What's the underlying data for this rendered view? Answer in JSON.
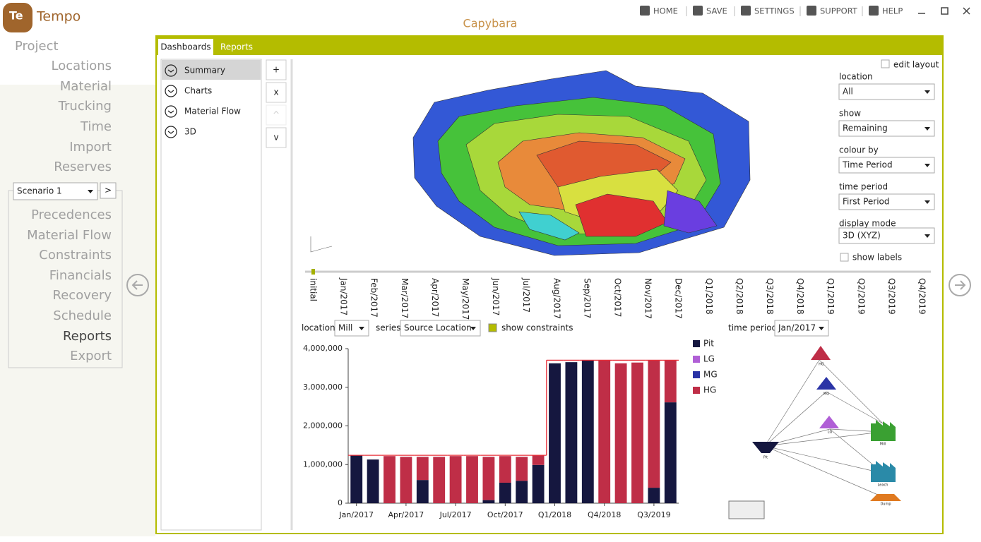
{
  "app": {
    "logo": "Te",
    "name": "Tempo",
    "project_title": "Capybara"
  },
  "toolbar": [
    "HOME",
    "SAVE",
    "SETTINGS",
    "SUPPORT",
    "HELP"
  ],
  "nav": {
    "top": [
      "Project",
      "Locations",
      "Material",
      "Trucking",
      "Time",
      "Import",
      "Reserves"
    ],
    "scenario": "Scenario 1",
    "scenario_button": ">",
    "bottom": [
      "Precedences",
      "Material Flow",
      "Constraints",
      "Financials",
      "Recovery",
      "Schedule",
      "Reports",
      "Export"
    ]
  },
  "tabs": [
    "Dashboards",
    "Reports"
  ],
  "dashboards": [
    "Summary",
    "Charts",
    "Material Flow",
    "3D"
  ],
  "dashboard_buttons": [
    "+",
    "x",
    "^",
    "v"
  ],
  "view_controls": {
    "edit_layout": "edit layout",
    "fields": [
      {
        "label": "location",
        "value": "All"
      },
      {
        "label": "show",
        "value": "Remaining"
      },
      {
        "label": "colour by",
        "value": "Time Period"
      },
      {
        "label": "time period",
        "value": "First Period"
      },
      {
        "label": "display mode",
        "value": "3D (XYZ)"
      }
    ],
    "show_labels": "show labels"
  },
  "timeline": [
    "initial",
    "Jan/2017",
    "Feb/2017",
    "Mar/2017",
    "Apr/2017",
    "May/2017",
    "Jun/2017",
    "Jul/2017",
    "Aug/2017",
    "Sep/2017",
    "Oct/2017",
    "Nov/2017",
    "Dec/2017",
    "Q1/2018",
    "Q2/2018",
    "Q3/2018",
    "Q4/2018",
    "Q1/2019",
    "Q2/2019",
    "Q3/2019",
    "Q4/2019"
  ],
  "chart_controls": {
    "location_label": "location",
    "location": "Mill",
    "series_label": "series",
    "series": "Source Location",
    "show_constraints": "show constraints",
    "time_period_label": "time period",
    "time_period": "Jan/2017"
  },
  "chart_data": {
    "type": "stacked_bar",
    "categories": [
      "Jan/2017",
      null,
      null,
      "Apr/2017",
      null,
      null,
      "Jul/2017",
      null,
      null,
      "Oct/2017",
      null,
      null,
      "Q1/2018",
      null,
      null,
      "Q4/2018",
      null,
      null,
      "Q3/2019",
      null
    ],
    "series": [
      {
        "name": "Pit",
        "color": "#15173f",
        "values": [
          1240000,
          1130000,
          0,
          0,
          600000,
          0,
          0,
          0,
          80000,
          530000,
          580000,
          990000,
          3620000,
          3650000,
          3700000,
          0,
          0,
          0,
          400000,
          2610000
        ]
      },
      {
        "name": "LG",
        "color": "#b05fd6",
        "values": [
          0,
          0,
          0,
          0,
          0,
          0,
          0,
          0,
          0,
          0,
          0,
          0,
          0,
          0,
          0,
          0,
          0,
          0,
          0,
          0
        ]
      },
      {
        "name": "MG",
        "color": "#2a33a6",
        "values": [
          0,
          0,
          0,
          0,
          0,
          0,
          0,
          0,
          0,
          0,
          0,
          0,
          0,
          0,
          0,
          0,
          0,
          0,
          0,
          0
        ]
      },
      {
        "name": "HG",
        "color": "#bf2e47",
        "values": [
          0,
          0,
          1220000,
          1200000,
          600000,
          1200000,
          1220000,
          1220000,
          1120000,
          690000,
          620000,
          250000,
          0,
          0,
          0,
          3700000,
          3620000,
          3640000,
          3300000,
          1090000
        ]
      }
    ],
    "constraint_values": [
      1240000,
      1240000,
      1240000,
      1240000,
      1240000,
      1240000,
      1240000,
      1240000,
      1240000,
      1240000,
      1240000,
      1240000,
      3700000,
      3700000,
      3700000,
      3700000,
      3700000,
      3700000,
      3700000,
      3700000
    ],
    "constraint_color": "#e8303a",
    "ylim": [
      0,
      4000000
    ],
    "yticks": [
      0,
      {
        "value": 1000000,
        "label": "1,000,000"
      },
      {
        "value": 2000000,
        "label": "2,000,000"
      },
      {
        "value": 3000000,
        "label": "3,000,000"
      },
      {
        "value": 4000000,
        "label": "4,000,000"
      }
    ]
  },
  "flow": {
    "nodes": [
      "HG",
      "MG",
      "LG",
      "Pit",
      "Mill",
      "Leach",
      "Dump"
    ]
  }
}
